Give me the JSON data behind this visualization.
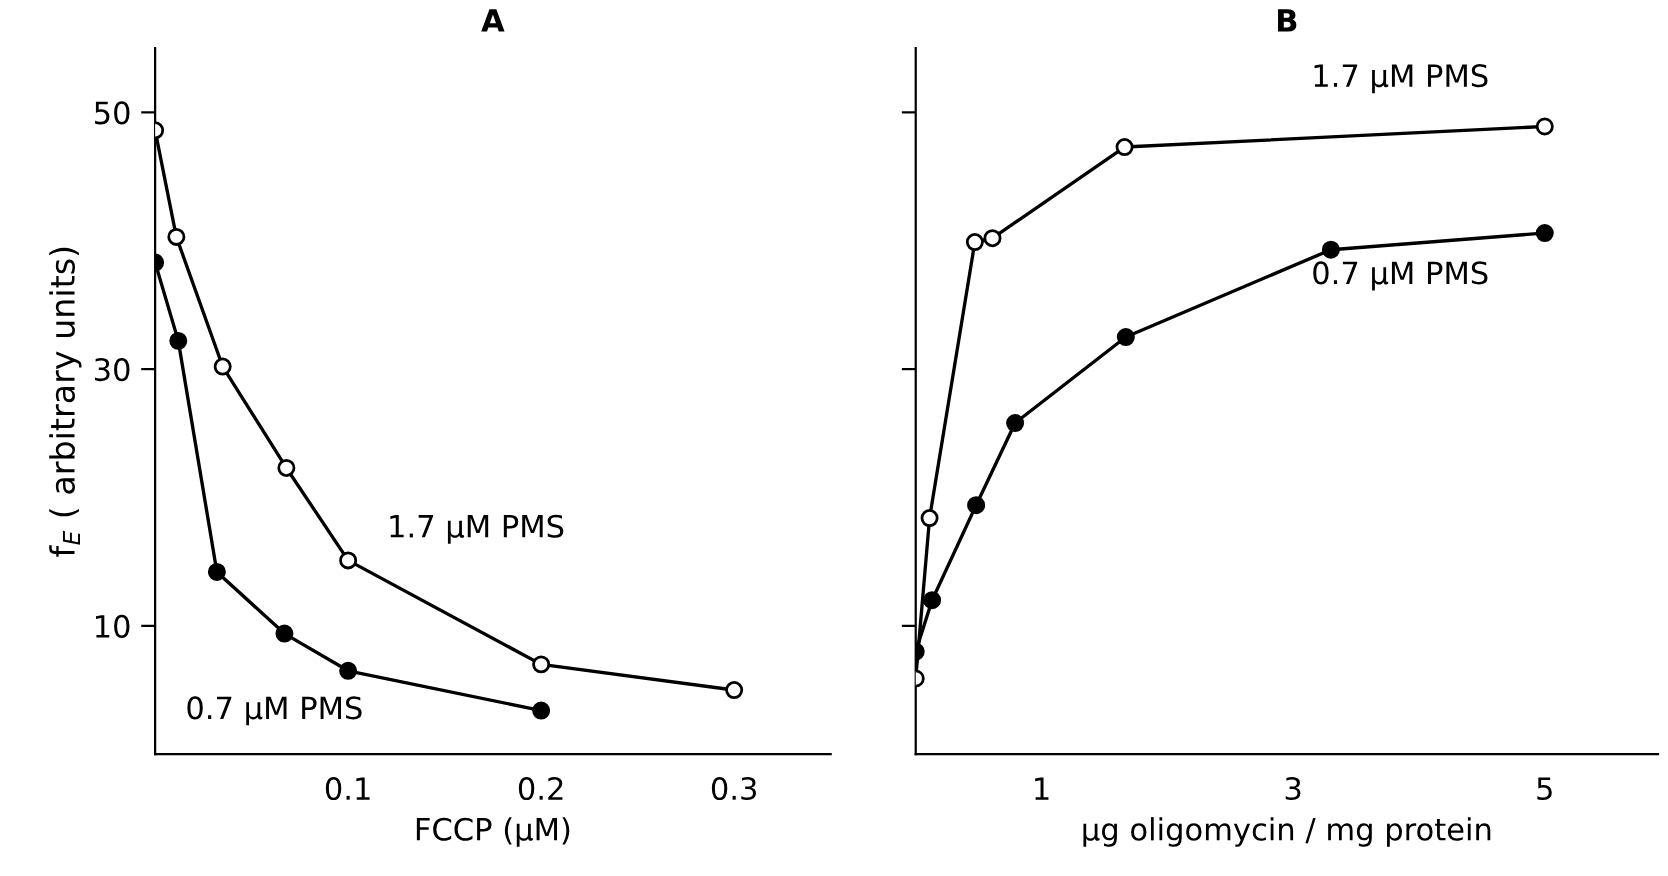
{
  "chart_data": [
    {
      "type": "line",
      "title": "A",
      "xlabel": "FCCP (µM)",
      "ylabel": "f$_{E}$ ( arbitrary units)",
      "xlim": [
        0,
        0.35
      ],
      "ylim": [
        0,
        55
      ],
      "xticks": [
        0.1,
        0.2,
        0.3
      ],
      "yticks": [
        10,
        30,
        50
      ],
      "grid": false,
      "legend": false,
      "marker": "circle",
      "line_style": "solid",
      "series": [
        {
          "name": "1.7 µM PMS",
          "color": "#000000",
          "x": [
            0,
            0.011,
            0.035,
            0.068,
            0.1,
            0.2,
            0.3
          ],
          "values": [
            48.6,
            40.3,
            30.2,
            22.3,
            15.1,
            7.0,
            5.0
          ]
        },
        {
          "name": "0.7 µM PMS",
          "color": "#000000",
          "x": [
            0,
            0.012,
            0.032,
            0.067,
            0.1,
            0.2
          ],
          "values": [
            38.3,
            32.2,
            14.2,
            9.4,
            6.5,
            3.4
          ]
        }
      ]
    },
    {
      "type": "line",
      "title": "B",
      "xlabel": "µg oligomycin / mg protein",
      "xlim": [
        0,
        5.9
      ],
      "ylim": [
        0,
        55
      ],
      "xticks": [
        1,
        3,
        5
      ],
      "yticks": [
        10,
        30,
        50
      ],
      "tick_labels": "x",
      "grid": false,
      "legend": false,
      "marker": "circle",
      "line_style": "solid",
      "series": [
        {
          "name": "1.7 µM PMS",
          "color": "#000000",
          "x": [
            0,
            0.11,
            0.47,
            0.61,
            1.66,
            5.0
          ],
          "values": [
            5.9,
            18.4,
            39.9,
            40.2,
            47.3,
            48.9
          ]
        },
        {
          "name": "0.7 µM PMS",
          "color": "#000000",
          "x": [
            0,
            0.13,
            0.48,
            0.79,
            1.67,
            3.3,
            5.0
          ],
          "values": [
            8.0,
            12.0,
            19.4,
            25.8,
            32.5,
            39.3,
            40.6
          ]
        }
      ]
    }
  ]
}
